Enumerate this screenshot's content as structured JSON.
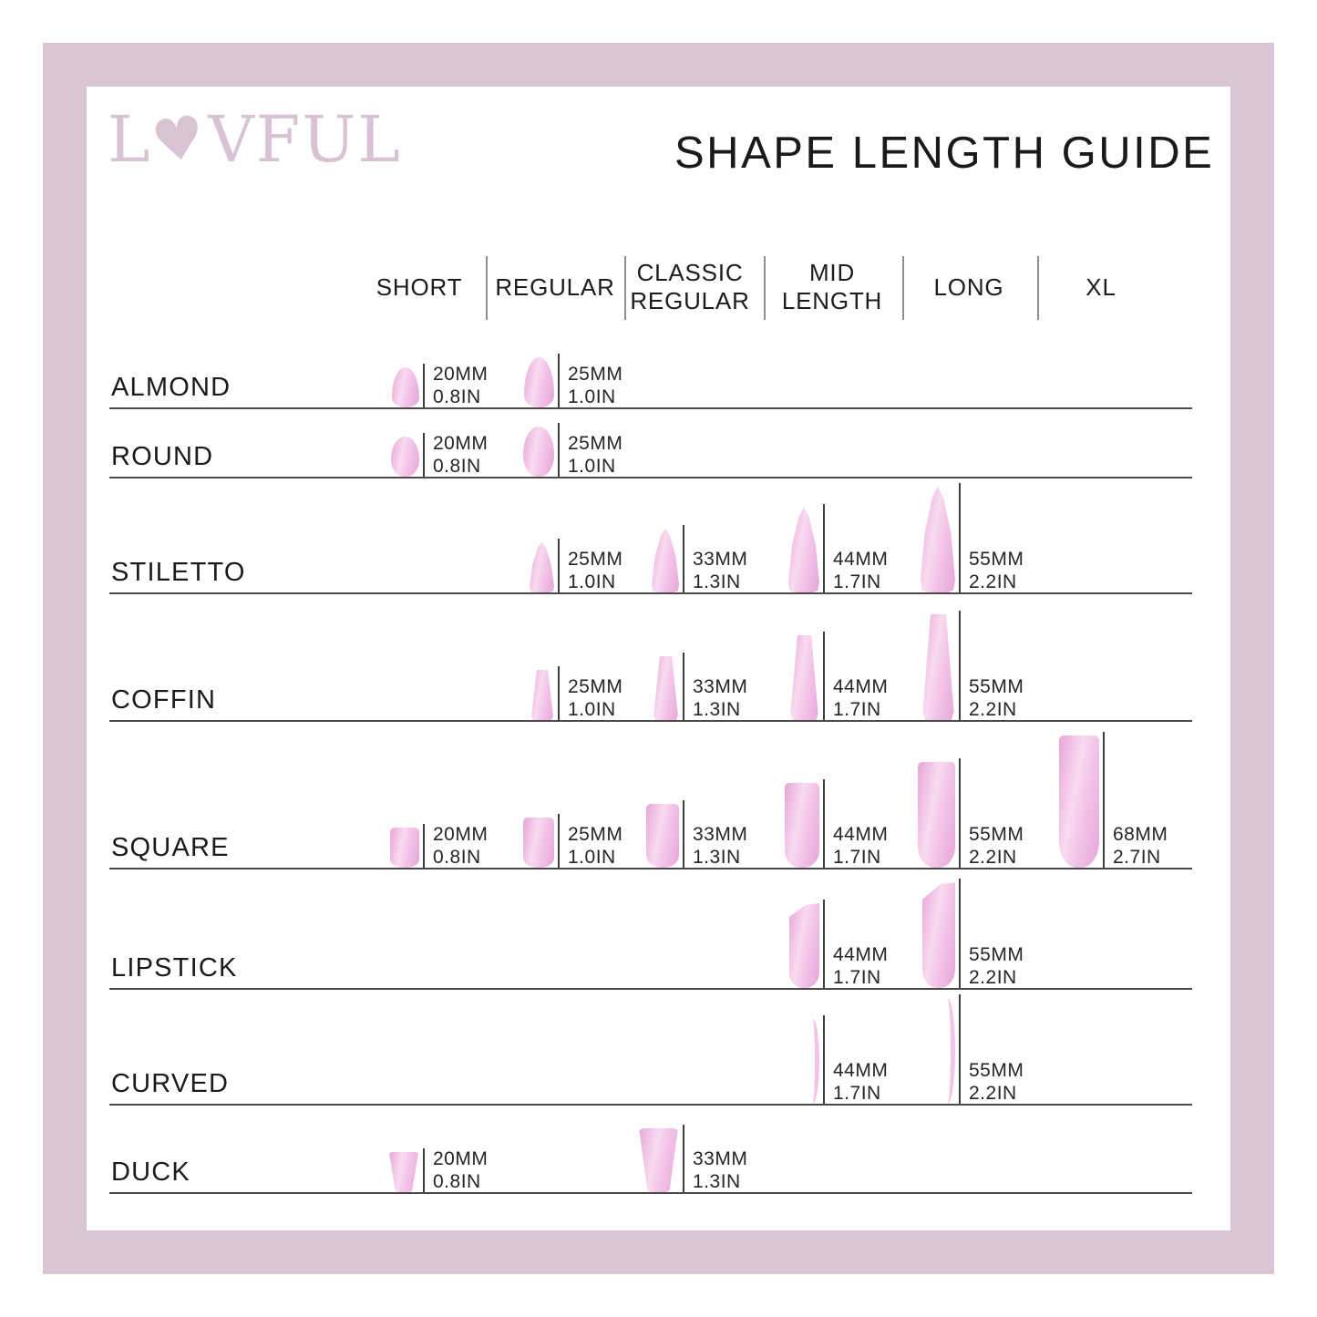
{
  "page": {
    "title": "SHAPE LENGTH GUIDE"
  },
  "logo": {
    "name": "LOVFUL",
    "l": "L",
    "heart": "♥",
    "rest": "VFUL"
  },
  "columns": [
    {
      "label": "SHORT"
    },
    {
      "label": "REGULAR"
    },
    {
      "label": "CLASSIC REGULAR"
    },
    {
      "label": "MID LENGTH"
    },
    {
      "label": "LONG"
    },
    {
      "label": "XL"
    }
  ],
  "rows": [
    {
      "label": "ALMOND",
      "shape": "almond",
      "cells": [
        {
          "col": 0,
          "mm": "20MM",
          "in": "0.8IN"
        },
        {
          "col": 1,
          "mm": "25MM",
          "in": "1.0IN"
        }
      ]
    },
    {
      "label": "ROUND",
      "shape": "round",
      "cells": [
        {
          "col": 0,
          "mm": "20MM",
          "in": "0.8IN"
        },
        {
          "col": 1,
          "mm": "25MM",
          "in": "1.0IN"
        }
      ]
    },
    {
      "label": "STILETTO",
      "shape": "stiletto",
      "cells": [
        {
          "col": 1,
          "mm": "25MM",
          "in": "1.0IN"
        },
        {
          "col": 2,
          "mm": "33MM",
          "in": "1.3IN"
        },
        {
          "col": 3,
          "mm": "44MM",
          "in": "1.7IN"
        },
        {
          "col": 4,
          "mm": "55MM",
          "in": "2.2IN"
        }
      ]
    },
    {
      "label": "COFFIN",
      "shape": "coffin",
      "cells": [
        {
          "col": 1,
          "mm": "25MM",
          "in": "1.0IN"
        },
        {
          "col": 2,
          "mm": "33MM",
          "in": "1.3IN"
        },
        {
          "col": 3,
          "mm": "44MM",
          "in": "1.7IN"
        },
        {
          "col": 4,
          "mm": "55MM",
          "in": "2.2IN"
        }
      ]
    },
    {
      "label": "SQUARE",
      "shape": "square",
      "cells": [
        {
          "col": 0,
          "mm": "20MM",
          "in": "0.8IN"
        },
        {
          "col": 1,
          "mm": "25MM",
          "in": "1.0IN"
        },
        {
          "col": 2,
          "mm": "33MM",
          "in": "1.3IN"
        },
        {
          "col": 3,
          "mm": "44MM",
          "in": "1.7IN"
        },
        {
          "col": 4,
          "mm": "55MM",
          "in": "2.2IN"
        },
        {
          "col": 5,
          "mm": "68MM",
          "in": "2.7IN"
        }
      ]
    },
    {
      "label": "LIPSTICK",
      "shape": "lipstick",
      "cells": [
        {
          "col": 3,
          "mm": "44MM",
          "in": "1.7IN"
        },
        {
          "col": 4,
          "mm": "55MM",
          "in": "2.2IN"
        }
      ]
    },
    {
      "label": "CURVED",
      "shape": "curved",
      "cells": [
        {
          "col": 3,
          "mm": "44MM",
          "in": "1.7IN"
        },
        {
          "col": 4,
          "mm": "55MM",
          "in": "2.2IN"
        }
      ]
    },
    {
      "label": "DUCK",
      "shape": "duck",
      "cells": [
        {
          "col": 0,
          "mm": "20MM",
          "in": "0.8IN"
        },
        {
          "col": 2,
          "mm": "33MM",
          "in": "1.3IN"
        }
      ]
    }
  ],
  "colors": {
    "frame": "#d9c5d6",
    "logo": "#d8c3d5",
    "nail_light": "#f9daf0",
    "nail_mid": "#f3c3e8",
    "nail_dark": "#e6a6d8",
    "text": "#1b1b1b",
    "row_line": "#4a4a4a",
    "divider": "#8f8f8f"
  }
}
